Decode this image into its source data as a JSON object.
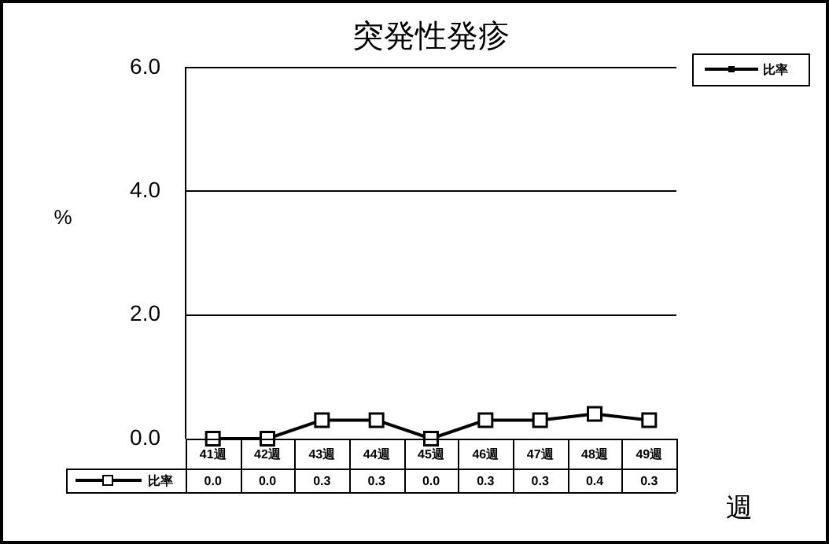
{
  "chart_data": {
    "type": "line",
    "title": "突発性発疹",
    "xlabel": "週",
    "ylabel": "%",
    "categories": [
      "41週",
      "42週",
      "43週",
      "44週",
      "45週",
      "46週",
      "47週",
      "48週",
      "49週"
    ],
    "series": [
      {
        "name": "比率",
        "color": "#000000",
        "values": [
          0.0,
          0.0,
          0.3,
          0.3,
          0.0,
          0.3,
          0.3,
          0.4,
          0.3
        ],
        "value_labels": [
          "0.0",
          "0.0",
          "0.3",
          "0.3",
          "0.0",
          "0.3",
          "0.3",
          "0.4",
          "0.3"
        ]
      }
    ],
    "ylim": [
      0,
      6
    ],
    "yticks": [
      {
        "value": 0,
        "label": "0.0"
      },
      {
        "value": 2,
        "label": "2.0"
      },
      {
        "value": 4,
        "label": "4.0"
      },
      {
        "value": 6,
        "label": "6.0"
      }
    ],
    "grid": "y",
    "legend": "top right",
    "marker": "square",
    "line_style": "solid"
  }
}
